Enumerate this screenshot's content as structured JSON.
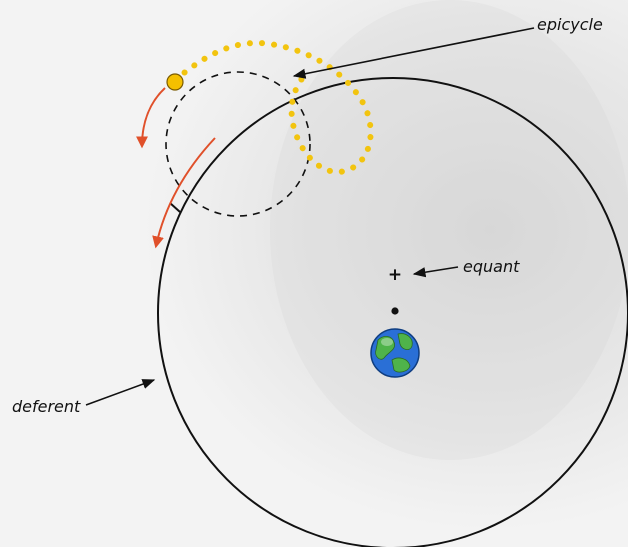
{
  "labels": {
    "epicycle": "epicycle",
    "equant": "equant",
    "deferent": "deferent",
    "equant_mark": "+"
  },
  "colors": {
    "background": "#f3f3f3",
    "lines": "#111111",
    "planet_path": "#f2c40f",
    "planet": "#f5c000",
    "motion_arrows": "#e0502a",
    "earth_ocean": "#2a6fd6",
    "earth_land": "#4fb34a"
  },
  "icons": {
    "earth": "earth-icon",
    "planet": "planet-icon",
    "center": "deferent-center-dot"
  }
}
